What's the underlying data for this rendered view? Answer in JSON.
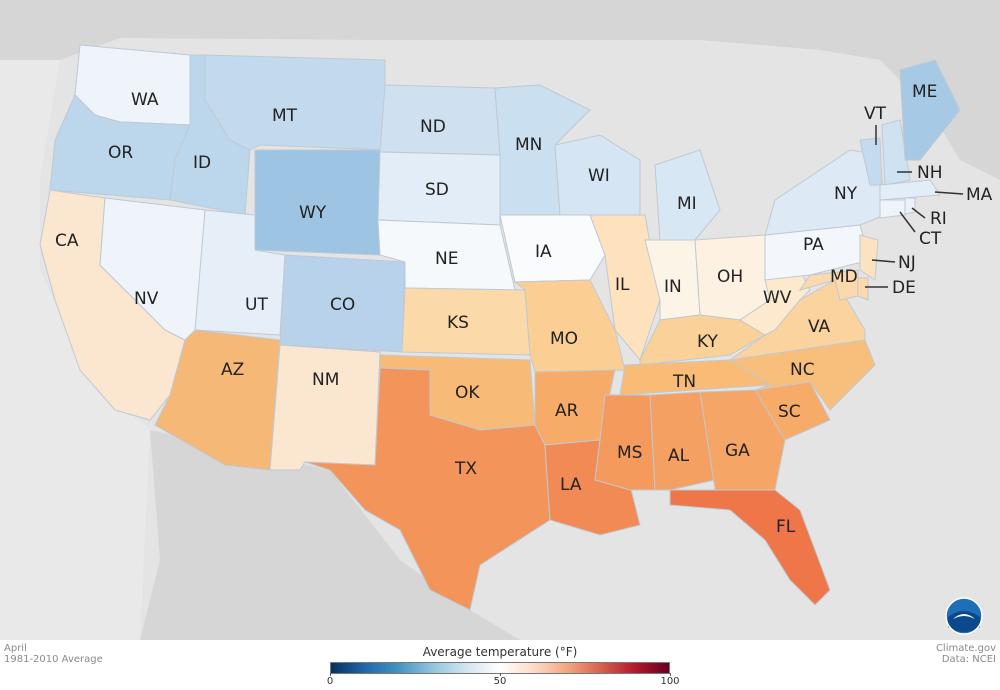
{
  "map": {
    "states": [
      {
        "abbr": "WA",
        "color": "#eef4fa"
      },
      {
        "abbr": "OR",
        "color": "#bcd6ec"
      },
      {
        "abbr": "CA",
        "color": "#fbe6cf"
      },
      {
        "abbr": "NV",
        "color": "#eef4fa"
      },
      {
        "abbr": "ID",
        "color": "#bcd6ec"
      },
      {
        "abbr": "MT",
        "color": "#c3daee"
      },
      {
        "abbr": "WY",
        "color": "#9ec4e4"
      },
      {
        "abbr": "UT",
        "color": "#e6eef7"
      },
      {
        "abbr": "AZ",
        "color": "#f5b877"
      },
      {
        "abbr": "CO",
        "color": "#b7d2ea"
      },
      {
        "abbr": "NM",
        "color": "#fbe6cf"
      },
      {
        "abbr": "ND",
        "color": "#cfe0f0"
      },
      {
        "abbr": "SD",
        "color": "#e3edf7"
      },
      {
        "abbr": "NE",
        "color": "#f6f9fc"
      },
      {
        "abbr": "KS",
        "color": "#fcd9a8"
      },
      {
        "abbr": "OK",
        "color": "#f8bb77"
      },
      {
        "abbr": "TX",
        "color": "#f3955b"
      },
      {
        "abbr": "MN",
        "color": "#cadff0"
      },
      {
        "abbr": "IA",
        "color": "#f9fbfd"
      },
      {
        "abbr": "MO",
        "color": "#fbcf94"
      },
      {
        "abbr": "AR",
        "color": "#f6ac68"
      },
      {
        "abbr": "LA",
        "color": "#f28a55"
      },
      {
        "abbr": "WI",
        "color": "#d5e5f3"
      },
      {
        "abbr": "IL",
        "color": "#fde2bd"
      },
      {
        "abbr": "MI",
        "color": "#d8e7f4"
      },
      {
        "abbr": "IN",
        "color": "#fdf4e8"
      },
      {
        "abbr": "OH",
        "color": "#fdf1e1"
      },
      {
        "abbr": "KY",
        "color": "#fbd19a"
      },
      {
        "abbr": "TN",
        "color": "#f9bb76"
      },
      {
        "abbr": "MS",
        "color": "#f49a5d"
      },
      {
        "abbr": "AL",
        "color": "#f4a062"
      },
      {
        "abbr": "GA",
        "color": "#f5a565"
      },
      {
        "abbr": "FL",
        "color": "#ee7649"
      },
      {
        "abbr": "SC",
        "color": "#f6ab69"
      },
      {
        "abbr": "NC",
        "color": "#f8bf7c"
      },
      {
        "abbr": "VA",
        "color": "#fbd39e"
      },
      {
        "abbr": "WV",
        "color": "#fde9cd"
      },
      {
        "abbr": "PA",
        "color": "#f3f7fb"
      },
      {
        "abbr": "NY",
        "color": "#dde9f5"
      },
      {
        "abbr": "VT",
        "color": "#c4dbef"
      },
      {
        "abbr": "NH",
        "color": "#cfe2f2"
      },
      {
        "abbr": "ME",
        "color": "#a6c9e6"
      },
      {
        "abbr": "MA",
        "color": "#e3edf7"
      },
      {
        "abbr": "RI",
        "color": "#eaf2f9"
      },
      {
        "abbr": "CT",
        "color": "#eef4fa"
      },
      {
        "abbr": "NJ",
        "color": "#fbe3c2"
      },
      {
        "abbr": "DE",
        "color": "#fcd9ad"
      },
      {
        "abbr": "MD",
        "color": "#fcd9ad"
      }
    ]
  },
  "footer": {
    "month": "April",
    "period": "1981-2010 Average",
    "credit": "Climate.gov",
    "data_source": "Data: NCEI"
  },
  "legend": {
    "title": "Average temperature (°F)",
    "min": 0,
    "max": 100,
    "ticks": [
      "0",
      "50",
      "100"
    ],
    "tick_values": [
      0,
      50,
      100
    ],
    "colors": [
      "#053061",
      "#2166ac",
      "#4393c3",
      "#92c5de",
      "#d1e5f0",
      "#ffffff",
      "#fddbc7",
      "#f4a582",
      "#d6604d",
      "#b2182b",
      "#67001f"
    ]
  }
}
